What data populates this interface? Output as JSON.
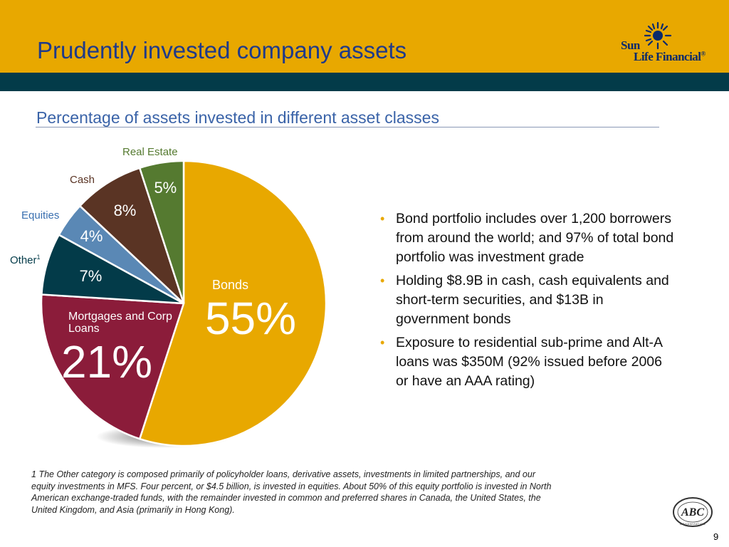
{
  "slide": {
    "title": "Prudently invested company assets",
    "subtitle": "Percentage of assets invested in different asset classes",
    "page_number": "9"
  },
  "logo": {
    "line1": "Sun",
    "line2": "Life Financial",
    "registered": "®"
  },
  "abc_logo": {
    "text": "ABC",
    "ring_text": "ORGANIZATION"
  },
  "bullets": [
    "Bond portfolio includes over 1,200 borrowers from around the world; and 97% of total bond portfolio was investment grade",
    "Holding $8.9B in cash, cash equivalents and short-term securities, and $13B in government bonds",
    "Exposure to residential sub-prime and Alt-A loans was $350M (92% issued before 2006 or have an AAA rating)"
  ],
  "footnote": {
    "marker": "1",
    "text": "The Other category is composed primarily of policyholder loans, derivative assets, investments in limited partnerships, and our equity investments in MFS. Four percent, or $4.5 billion, is invested in equities. About 50% of this equity portfolio is invested in North American exchange-traded funds, with the remainder invested in common and preferred shares in Canada, the United States, the United Kingdom, and Asia (primarily in Hong Kong)."
  },
  "colors": {
    "header_band": "#e8a800",
    "teal_bar": "#033b49",
    "title": "#1f3a8a",
    "subtitle": "#3a63a8",
    "bullet_dot": "#e8a800"
  },
  "chart_data": {
    "type": "pie",
    "start_angle_deg": 0,
    "direction": "clockwise",
    "slices": [
      {
        "name": "Bonds",
        "value": 55,
        "value_label": "55%",
        "color": "#e8a800"
      },
      {
        "name": "Mortgages and Corp Loans",
        "value": 21,
        "value_label": "21%",
        "color": "#8b1c3a"
      },
      {
        "name": "Other",
        "name_sup": "1",
        "value": 7,
        "value_label": "7%",
        "color": "#033b49"
      },
      {
        "name": "Equities",
        "value": 4,
        "value_label": "4%",
        "color": "#5a88b5"
      },
      {
        "name": "Cash",
        "value": 8,
        "value_label": "8%",
        "color": "#5a3424"
      },
      {
        "name": "Real Estate",
        "value": 5,
        "value_label": "5%",
        "color": "#557a30"
      }
    ]
  }
}
